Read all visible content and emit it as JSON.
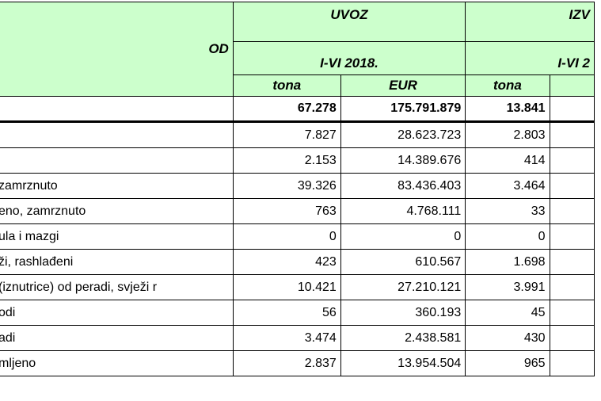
{
  "header": {
    "left_label": "OD",
    "import_label": "UVOZ",
    "export_label": "IZV",
    "import_period": "I-VI  2018.",
    "export_period": "I-VI  2",
    "unit_tona": "tona",
    "unit_eur": "EUR",
    "unit_tona_export": "tona"
  },
  "total": {
    "tona": "67.278",
    "eur": "175.791.879",
    "export_tona": "13.841"
  },
  "rows": [
    {
      "label": "",
      "tona": "7.827",
      "eur": "28.623.723",
      "export_tona": "2.803"
    },
    {
      "label": "",
      "tona": "2.153",
      "eur": "14.389.676",
      "export_tona": "414"
    },
    {
      "label": "zamrznuto",
      "tona": "39.326",
      "eur": "83.436.403",
      "export_tona": "3.464"
    },
    {
      "label": "eno, zamrznuto",
      "tona": "763",
      "eur": "4.768.111",
      "export_tona": "33"
    },
    {
      "label": "ula i mazgi",
      "tona": "0",
      "eur": "0",
      "export_tona": "0"
    },
    {
      "label": "ži, rashlađeni",
      "tona": "423",
      "eur": "610.567",
      "export_tona": "1.698"
    },
    {
      "label": "(iznutrice) od peradi, svježi r",
      "tona": "10.421",
      "eur": "27.210.121",
      "export_tona": "3.991"
    },
    {
      "label": "odi",
      "tona": "56",
      "eur": "360.193",
      "export_tona": "45"
    },
    {
      "label": "adi",
      "tona": "3.474",
      "eur": "2.438.581",
      "export_tona": "430"
    },
    {
      "label": "mljeno",
      "tona": "2.837",
      "eur": "13.954.504",
      "export_tona": "965"
    }
  ]
}
